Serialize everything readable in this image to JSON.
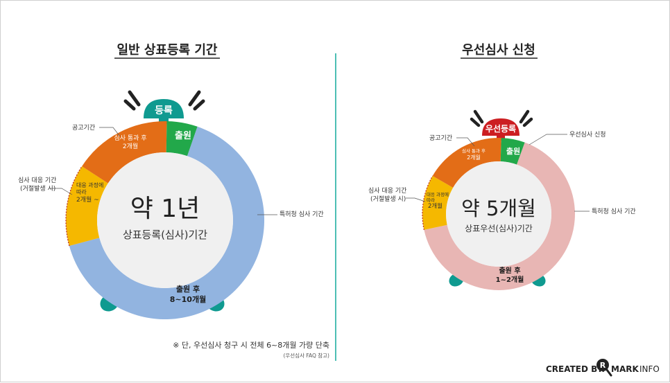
{
  "left_panel": {
    "title": "일반 상표등록 기간",
    "bell_label": "등록",
    "center_main": "약 1년",
    "center_sub": "상표등록(심사)기간",
    "seg_chulwon": "출원",
    "seg_gonggo_line1": "심사 통과 후",
    "seg_gonggo_line2": "2개월",
    "seg_response_line1": "대응 과정에",
    "seg_response_line2": "따라",
    "seg_response_line3": "2개월 ~",
    "seg_review_line1": "출원 후",
    "seg_review_line2": "8~10개월",
    "callout_gonggo": "공고기간",
    "callout_response_line1": "심사 대응 기간",
    "callout_response_line2": "(거절발생 시)",
    "callout_review": "특허청 심사 기간",
    "footnote": "※ 단, 우선심사 청구 시 전체 6~8개월 가량 단축",
    "footnote_source": "(우선심사 FAQ 참고)"
  },
  "right_panel": {
    "title": "우선심사 신청",
    "bell_label": "우선등록",
    "center_main": "약 5개월",
    "center_sub": "상표우선(심사)기간",
    "seg_chulwon": "출원",
    "seg_gonggo_line1": "심사 통과 후",
    "seg_gonggo_line2": "2개월",
    "seg_response_line1": "대응 과정에",
    "seg_response_line2": "따라",
    "seg_response_line3": "2개월",
    "seg_review_line1": "출원 후",
    "seg_review_line2": "1~2개월",
    "callout_gonggo": "공고기간",
    "callout_priority": "우선심사 신청",
    "callout_response_line1": "심사 대응 기간",
    "callout_response_line2": "(거절발생 시)",
    "callout_review": "특허청 심사 기간"
  },
  "credit": {
    "created_by": "CREATED BY.",
    "brand_r": "R",
    "brand_mark": "MARK",
    "brand_info": "INFO"
  },
  "colors": {
    "chulwon_green": "#22a84a",
    "gonggo_orange": "#e36d17",
    "response_yellow": "#f5b800",
    "review_blue_left": "#92b4e0",
    "review_pink_right": "#e8b6b4",
    "inner_gray": "#f0f0f0",
    "teal": "#0f9a90",
    "bell_red": "#cc1e22",
    "divider_teal": "#11a89c",
    "dark": "#222222",
    "brand_orange": "#e87a1e"
  },
  "icons": [
    "alarm-bell-icon",
    "alarm-leg-icon",
    "ring-line-icon",
    "brand-r-magnifier-icon"
  ]
}
